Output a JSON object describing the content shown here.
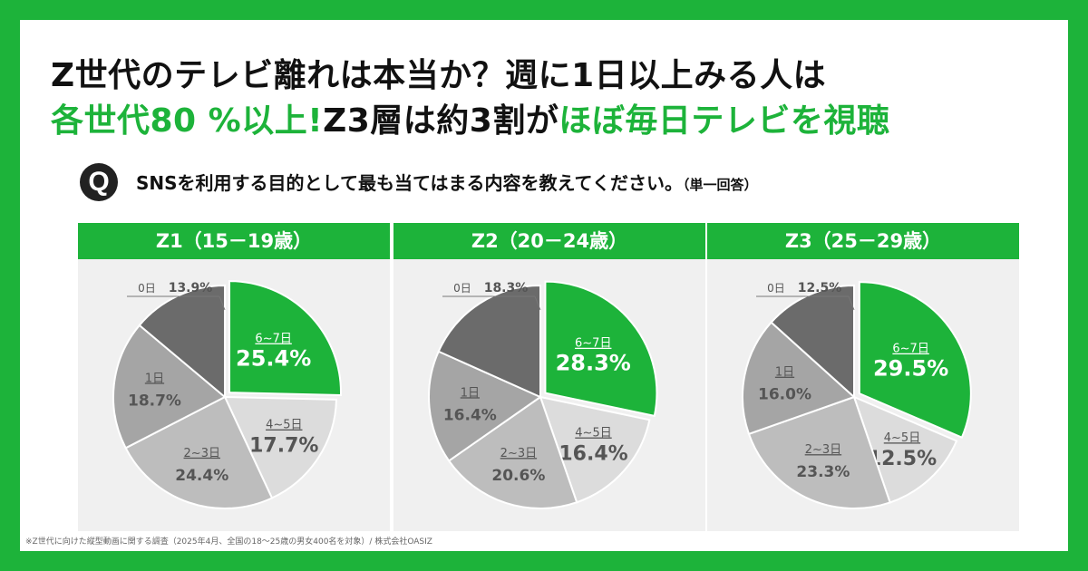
{
  "title": {
    "line1": "Z世代のテレビ離れは本当か？週に1日以上みる人は",
    "line2_green1": "各世代80 %以上!",
    "line2_black": "Z3層は約3割が",
    "line2_green2": "ほぼ毎日テレビを視聴"
  },
  "question": {
    "badge": "Q",
    "text": "SNSを利用する目的として最も当てはまる内容を教えてください。",
    "note": "（単一回答）"
  },
  "colors": {
    "brand_green": "#1db33a",
    "slice_0day": "#6b6b6b",
    "slice_1day": "#a5a5a5",
    "slice_2_3day": "#bdbdbd",
    "slice_4_5day": "#dcdcdc",
    "slice_6_7day": "#1db33a"
  },
  "chart_data": [
    {
      "type": "pie",
      "title": "Z1（15－19歳）",
      "labels": [
        "6~7日",
        "4~5日",
        "2~3日",
        "1日",
        "0日"
      ],
      "values": [
        25.4,
        17.7,
        24.4,
        18.7,
        13.9
      ],
      "value_labels": [
        "25.4%",
        "17.7%",
        "24.4%",
        "18.7%",
        "13.9%"
      ]
    },
    {
      "type": "pie",
      "title": "Z2（20－24歳）",
      "labels": [
        "6~7日",
        "4~5日",
        "2~3日",
        "1日",
        "0日"
      ],
      "values": [
        28.3,
        16.4,
        20.6,
        16.4,
        18.3
      ],
      "value_labels": [
        "28.3%",
        "16.4%",
        "20.6%",
        "16.4%",
        "18.3%"
      ]
    },
    {
      "type": "pie",
      "title": "Z3（25－29歳）",
      "labels": [
        "6~7日",
        "4~5日",
        "2~3日",
        "1日",
        "0日"
      ],
      "values": [
        29.5,
        12.5,
        23.3,
        16.0,
        12.5
      ],
      "value_labels": [
        "29.5%",
        "12.5%",
        "23.3%",
        "16.0%",
        "12.5%"
      ]
    }
  ],
  "footnote": "※Z世代に向けた縦型動画に関する調査（2025年4月、全国の18～25歳の男女400名を対象）/ 株式会社OASIZ"
}
